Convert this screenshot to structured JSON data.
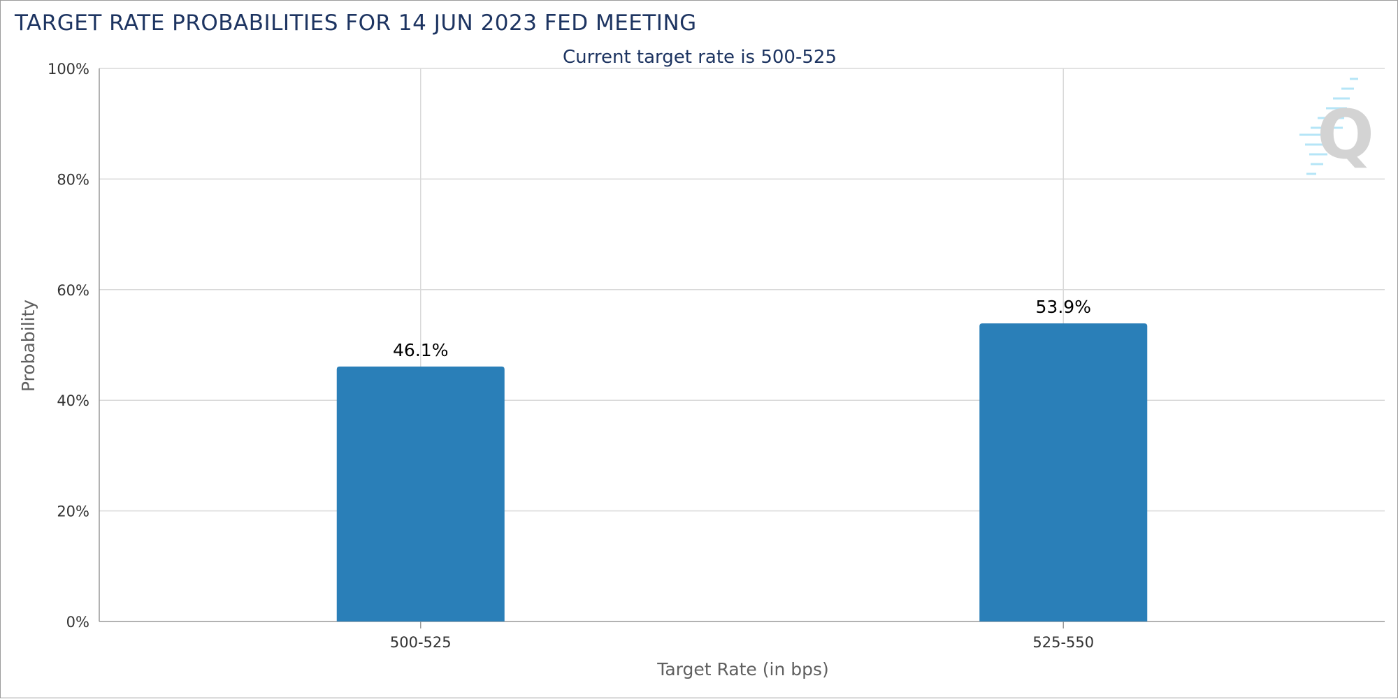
{
  "chart_data": {
    "type": "bar",
    "title": "TARGET RATE PROBABILITIES FOR 14 JUN 2023 FED MEETING",
    "subtitle": "Current target rate is 500-525",
    "categories": [
      "500-525",
      "525-550"
    ],
    "values": [
      46.1,
      53.9
    ],
    "data_labels": [
      "46.1%",
      "53.9%"
    ],
    "xlabel": "Target Rate (in bps)",
    "ylabel": "Probability",
    "ylim": [
      0,
      100
    ],
    "yticks": [
      0,
      20,
      40,
      60,
      80,
      100
    ],
    "ytick_labels": [
      "0%",
      "20%",
      "40%",
      "60%",
      "80%",
      "100%"
    ],
    "grid": true,
    "legend": "none",
    "bar_color": "#2a7fb8",
    "grid_color": "#d9d9d9",
    "axis_color": "#999999",
    "title_color": "#1d3461",
    "watermark_icon": "q-logo-icon"
  }
}
